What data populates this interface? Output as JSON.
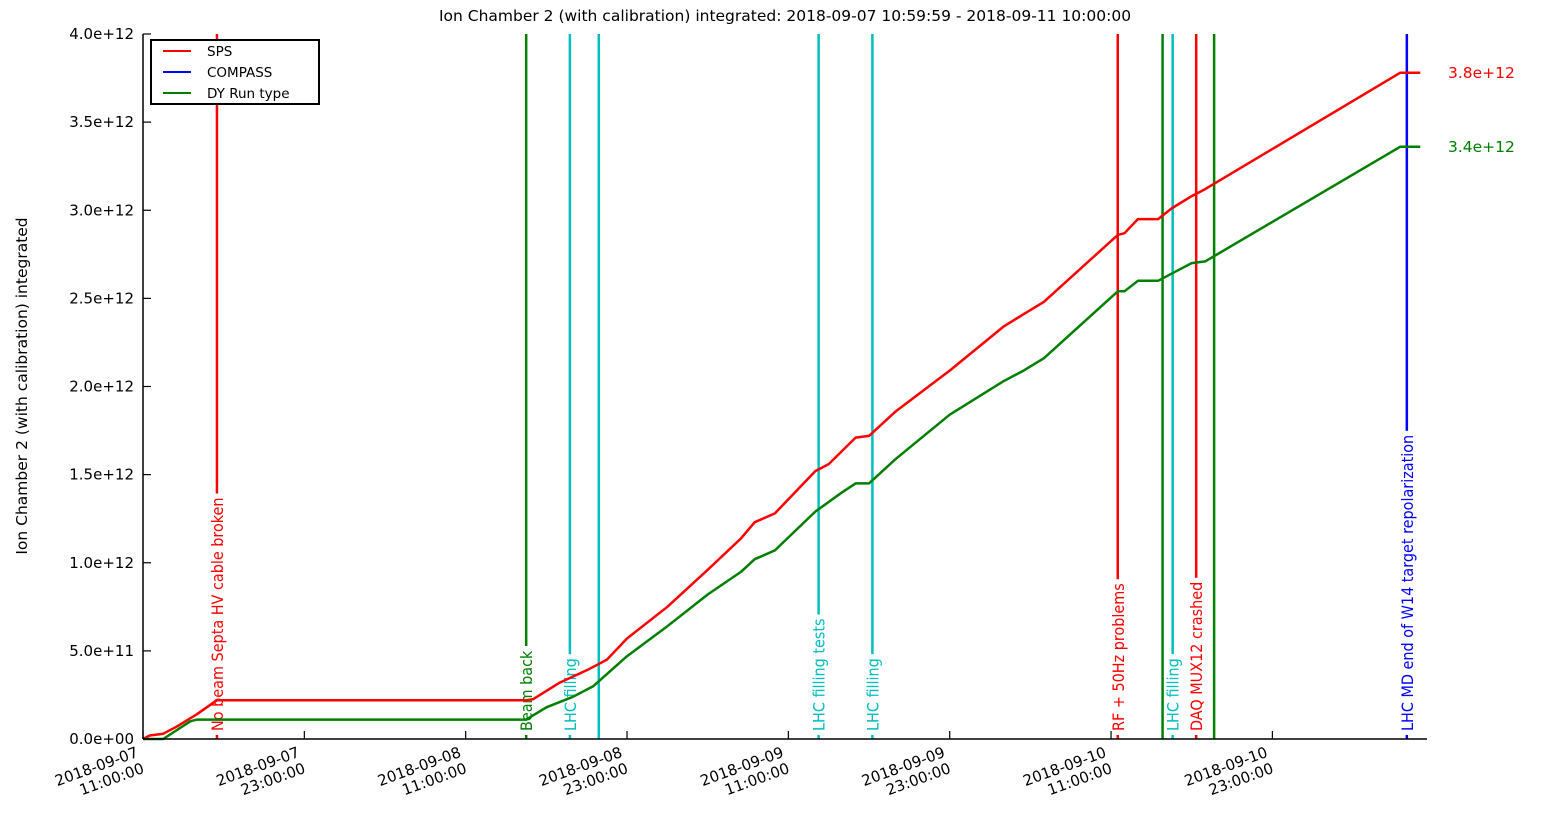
{
  "chart_data": {
    "type": "line",
    "title": "Ion Chamber 2 (with calibration) integrated: 2018-09-07 10:59:59 - 2018-09-11 10:00:00",
    "xlabel": "",
    "ylabel": "Ion Chamber 2 (with calibration) integrated",
    "xlim": [
      "2018-09-07 11:00:00",
      "2018-09-11 10:30:00"
    ],
    "ylim": [
      0,
      4000000000000.0
    ],
    "x_ticks": [
      {
        "value": "2018-09-07 11:00:00",
        "line1": "2018-09-07",
        "line2": "11:00:00"
      },
      {
        "value": "2018-09-07 23:00:00",
        "line1": "2018-09-07",
        "line2": "23:00:00"
      },
      {
        "value": "2018-09-08 11:00:00",
        "line1": "2018-09-08",
        "line2": "11:00:00"
      },
      {
        "value": "2018-09-08 23:00:00",
        "line1": "2018-09-08",
        "line2": "23:00:00"
      },
      {
        "value": "2018-09-09 11:00:00",
        "line1": "2018-09-09",
        "line2": "11:00:00"
      },
      {
        "value": "2018-09-09 23:00:00",
        "line1": "2018-09-09",
        "line2": "23:00:00"
      },
      {
        "value": "2018-09-10 11:00:00",
        "line1": "2018-09-10",
        "line2": "11:00:00"
      },
      {
        "value": "2018-09-10 23:00:00",
        "line1": "2018-09-10",
        "line2": "23:00:00"
      }
    ],
    "y_ticks": [
      {
        "value": 0,
        "label": "0.0e+00"
      },
      {
        "value": 500000000000.0,
        "label": "5.0e+11"
      },
      {
        "value": 1000000000000.0,
        "label": "1.0e+12"
      },
      {
        "value": 1500000000000.0,
        "label": "1.5e+12"
      },
      {
        "value": 2000000000000.0,
        "label": "2.0e+12"
      },
      {
        "value": 2500000000000.0,
        "label": "2.5e+12"
      },
      {
        "value": 3000000000000.0,
        "label": "3.0e+12"
      },
      {
        "value": 3500000000000.0,
        "label": "3.5e+12"
      },
      {
        "value": 4000000000000.0,
        "label": "4.0e+12"
      }
    ],
    "grid": false,
    "legend": {
      "placement": "top-left",
      "entries": [
        {
          "label": "SPS",
          "color": "#ff0000"
        },
        {
          "label": "COMPASS",
          "color": "#0000ff"
        },
        {
          "label": "DY Run type",
          "color": "#007f00"
        }
      ]
    },
    "series": [
      {
        "name": "SPS",
        "color": "#ff0000",
        "end_label": "3.8e+12",
        "points": [
          [
            "2018-09-07 11:00:00",
            0
          ],
          [
            "2018-09-07 11:30:00",
            20000000000.0
          ],
          [
            "2018-09-07 12:30:00",
            30000000000.0
          ],
          [
            "2018-09-07 13:30:00",
            70000000000.0
          ],
          [
            "2018-09-07 15:00:00",
            140000000000.0
          ],
          [
            "2018-09-07 16:30:00",
            220000000000.0
          ],
          [
            "2018-09-08 15:30:00",
            220000000000.0
          ],
          [
            "2018-09-08 16:00:00",
            225000000000.0
          ],
          [
            "2018-09-08 18:00:00",
            320000000000.0
          ],
          [
            "2018-09-08 20:00:00",
            390000000000.0
          ],
          [
            "2018-09-08 21:30:00",
            450000000000.0
          ],
          [
            "2018-09-08 23:00:00",
            570000000000.0
          ],
          [
            "2018-09-09 02:00:00",
            750000000000.0
          ],
          [
            "2018-09-09 05:00:00",
            960000000000.0
          ],
          [
            "2018-09-09 07:30:00",
            1140000000000.0
          ],
          [
            "2018-09-09 08:30:00",
            1230000000000.0
          ],
          [
            "2018-09-09 10:00:00",
            1280000000000.0
          ],
          [
            "2018-09-09 13:00:00",
            1520000000000.0
          ],
          [
            "2018-09-09 14:00:00",
            1560000000000.0
          ],
          [
            "2018-09-09 16:00:00",
            1710000000000.0
          ],
          [
            "2018-09-09 17:00:00",
            1720000000000.0
          ],
          [
            "2018-09-09 19:00:00",
            1860000000000.0
          ],
          [
            "2018-09-09 23:00:00",
            2090000000000.0
          ],
          [
            "2018-09-10 03:00:00",
            2340000000000.0
          ],
          [
            "2018-09-10 04:30:00",
            2410000000000.0
          ],
          [
            "2018-09-10 06:00:00",
            2480000000000.0
          ],
          [
            "2018-09-10 11:30:00",
            2860000000000.0
          ],
          [
            "2018-09-10 12:00:00",
            2870000000000.0
          ],
          [
            "2018-09-10 13:00:00",
            2950000000000.0
          ],
          [
            "2018-09-10 14:30:00",
            2950000000000.0
          ],
          [
            "2018-09-10 15:30:00",
            3010000000000.0
          ],
          [
            "2018-09-10 17:00:00",
            3080000000000.0
          ],
          [
            "2018-09-10 18:00:00",
            3120000000000.0
          ],
          [
            "2018-09-11 08:30:00",
            3780000000000.0
          ],
          [
            "2018-09-11 10:00:00",
            3780000000000.0
          ]
        ]
      },
      {
        "name": "COMPASS",
        "color": "#0000ff",
        "points": []
      },
      {
        "name": "DY Run type",
        "color": "#007f00",
        "end_label": "3.4e+12",
        "points": [
          [
            "2018-09-07 11:00:00",
            0
          ],
          [
            "2018-09-07 12:30:00",
            0
          ],
          [
            "2018-09-07 14:30:00",
            100000000000.0
          ],
          [
            "2018-09-07 15:00:00",
            110000000000.0
          ],
          [
            "2018-09-08 15:30:00",
            110000000000.0
          ],
          [
            "2018-09-08 17:00:00",
            180000000000.0
          ],
          [
            "2018-09-08 19:00:00",
            240000000000.0
          ],
          [
            "2018-09-08 20:30:00",
            300000000000.0
          ],
          [
            "2018-09-08 23:00:00",
            470000000000.0
          ],
          [
            "2018-09-09 02:00:00",
            640000000000.0
          ],
          [
            "2018-09-09 05:00:00",
            820000000000.0
          ],
          [
            "2018-09-09 07:30:00",
            950000000000.0
          ],
          [
            "2018-09-09 08:30:00",
            1020000000000.0
          ],
          [
            "2018-09-09 10:00:00",
            1070000000000.0
          ],
          [
            "2018-09-09 13:00:00",
            1290000000000.0
          ],
          [
            "2018-09-09 15:00:00",
            1400000000000.0
          ],
          [
            "2018-09-09 16:00:00",
            1450000000000.0
          ],
          [
            "2018-09-09 17:00:00",
            1450000000000.0
          ],
          [
            "2018-09-09 19:00:00",
            1590000000000.0
          ],
          [
            "2018-09-09 23:00:00",
            1840000000000.0
          ],
          [
            "2018-09-10 03:00:00",
            2030000000000.0
          ],
          [
            "2018-09-10 04:30:00",
            2090000000000.0
          ],
          [
            "2018-09-10 06:00:00",
            2160000000000.0
          ],
          [
            "2018-09-10 11:30:00",
            2540000000000.0
          ],
          [
            "2018-09-10 12:00:00",
            2540000000000.0
          ],
          [
            "2018-09-10 13:00:00",
            2600000000000.0
          ],
          [
            "2018-09-10 14:30:00",
            2600000000000.0
          ],
          [
            "2018-09-10 15:30:00",
            2640000000000.0
          ],
          [
            "2018-09-10 17:00:00",
            2700000000000.0
          ],
          [
            "2018-09-10 18:00:00",
            2710000000000.0
          ],
          [
            "2018-09-11 08:30:00",
            3360000000000.0
          ],
          [
            "2018-09-11 10:00:00",
            3360000000000.0
          ]
        ]
      }
    ],
    "annotations": [
      {
        "x": "2018-09-07 16:30:00",
        "label": "No beam Septa HV cable broken",
        "color": "#ff0000"
      },
      {
        "x": "2018-09-08 15:30:00",
        "label": "Beam back",
        "color": "#007f00"
      },
      {
        "x": "2018-09-08 18:45:00",
        "label": "LHC filling",
        "color": "#00bfbf"
      },
      {
        "x": "2018-09-08 20:54:00",
        "label": "",
        "color": "#00bfbf"
      },
      {
        "x": "2018-09-09 13:15:00",
        "label": "LHC filling tests",
        "color": "#00bfbf"
      },
      {
        "x": "2018-09-09 17:15:00",
        "label": "LHC filling",
        "color": "#00bfbf"
      },
      {
        "x": "2018-09-10 11:30:00",
        "label": "RF + 50Hz problems",
        "color": "#ff0000"
      },
      {
        "x": "2018-09-10 14:50:00",
        "label": "",
        "color": "#007f00"
      },
      {
        "x": "2018-09-10 15:35:00",
        "label": "LHC filling",
        "color": "#00bfbf"
      },
      {
        "x": "2018-09-10 17:20:00",
        "label": "DAQ MUX12 crashed",
        "color": "#ff0000"
      },
      {
        "x": "2018-09-10 18:40:00",
        "label": "",
        "color": "#007f00"
      },
      {
        "x": "2018-09-11 09:00:00",
        "label": "LHC MD  end of W14  target repolarization",
        "color": "#0000ff"
      }
    ]
  }
}
